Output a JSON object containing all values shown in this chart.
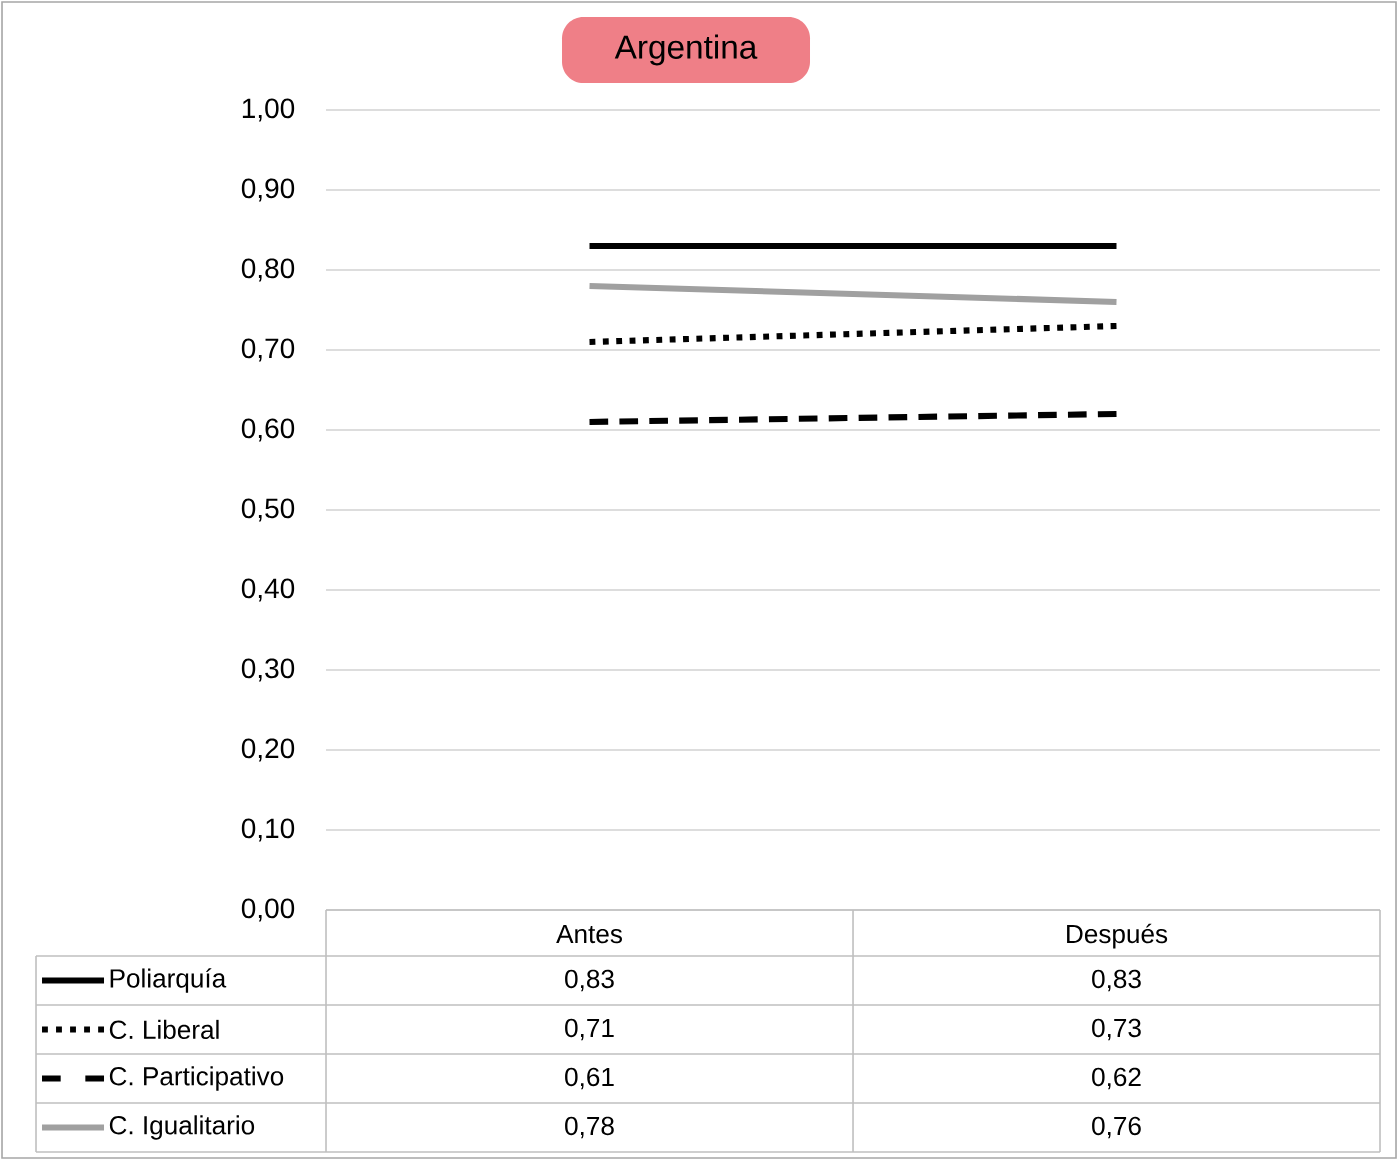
{
  "chart_data": {
    "type": "line",
    "title": "Argentina",
    "categories": [
      "Antes",
      "Después"
    ],
    "series": [
      {
        "name": "Poliarquía",
        "color": "#000000",
        "line_style": "solid",
        "values": [
          0.83,
          0.83
        ],
        "value_labels": [
          "0,83",
          "0,83"
        ]
      },
      {
        "name": "C. Liberal",
        "color": "#000000",
        "line_style": "dotted",
        "values": [
          0.71,
          0.73
        ],
        "value_labels": [
          "0,71",
          "0,73"
        ]
      },
      {
        "name": "C. Participativo",
        "color": "#000000",
        "line_style": "dashed",
        "values": [
          0.61,
          0.62
        ],
        "value_labels": [
          "0,61",
          "0,62"
        ]
      },
      {
        "name": "C. Igualitario",
        "color": "#a0a0a0",
        "line_style": "solid",
        "values": [
          0.78,
          0.76
        ],
        "value_labels": [
          "0,78",
          "0,76"
        ]
      }
    ],
    "ylim": [
      0,
      1
    ],
    "yticks": [
      {
        "value": 0,
        "label": "0,00"
      },
      {
        "value": 0.1,
        "label": "0,10"
      },
      {
        "value": 0.2,
        "label": "0,20"
      },
      {
        "value": 0.3,
        "label": "0,30"
      },
      {
        "value": 0.4,
        "label": "0,40"
      },
      {
        "value": 0.5,
        "label": "0,50"
      },
      {
        "value": 0.6,
        "label": "0,60"
      },
      {
        "value": 0.7,
        "label": "0,70"
      },
      {
        "value": 0.8,
        "label": "0,80"
      },
      {
        "value": 0.9,
        "label": "0,90"
      },
      {
        "value": 1,
        "label": "1,00"
      }
    ],
    "grid": "y",
    "legend": "bottom",
    "marker": "none"
  }
}
